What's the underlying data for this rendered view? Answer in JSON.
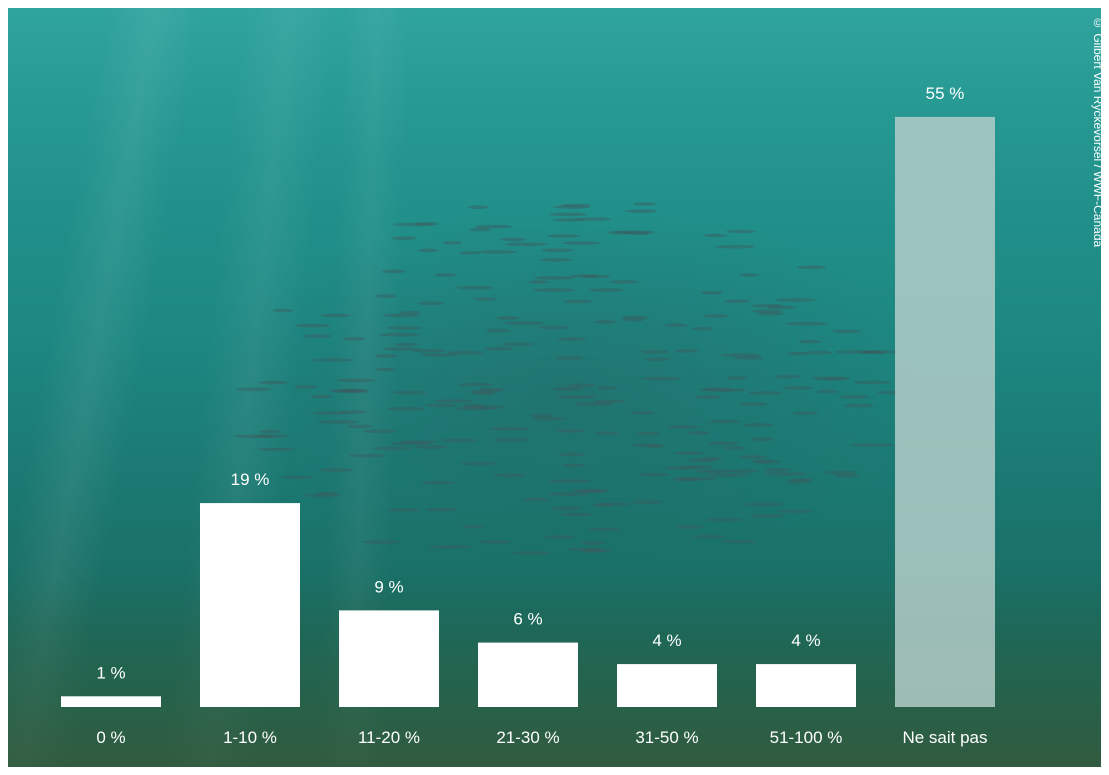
{
  "photo_credit": "© Gilbert Van Ryckevorsel / WWF-Canada",
  "colors": {
    "bar_fill": "#ffffff",
    "bar_highlight_fill": "#b3cdc8",
    "label_color": "#ffffff",
    "background_water": "#1d8680"
  },
  "chart_data": {
    "type": "bar",
    "categories": [
      "0 %",
      "1-10 %",
      "11-20 %",
      "21-30 %",
      "31-50 %",
      "51-100 %",
      "Ne sait pas"
    ],
    "values": [
      1,
      19,
      9,
      6,
      4,
      4,
      55
    ],
    "data_labels": [
      "1 %",
      "19 %",
      "9 %",
      "6 %",
      "4 %",
      "4 %",
      "55 %"
    ],
    "value_unit": "%",
    "highlighted_category": "Ne sait pas",
    "ylim": [
      0,
      55
    ],
    "grid": false,
    "legend": "none"
  }
}
